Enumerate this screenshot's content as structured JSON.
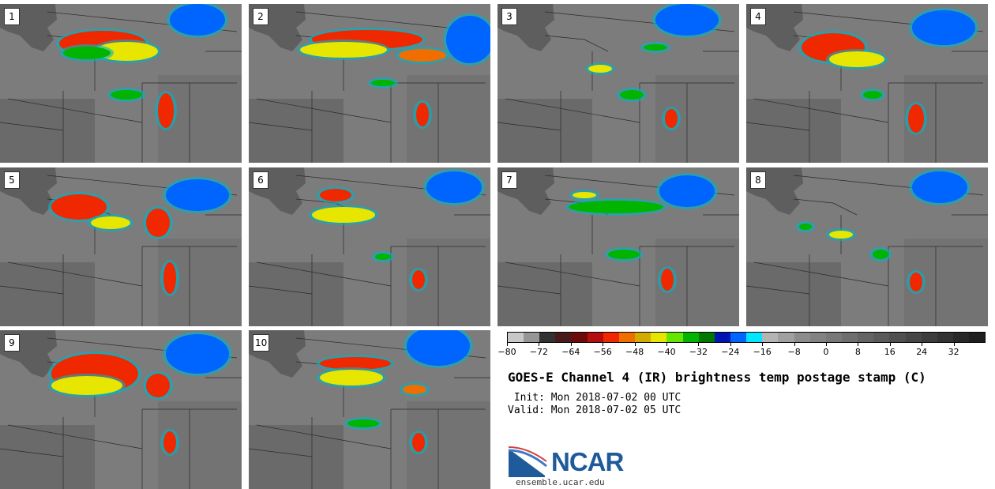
{
  "panels": [
    {
      "label": "1"
    },
    {
      "label": "2"
    },
    {
      "label": "3"
    },
    {
      "label": "4"
    },
    {
      "label": "5"
    },
    {
      "label": "6"
    },
    {
      "label": "7"
    },
    {
      "label": "8"
    },
    {
      "label": "9"
    },
    {
      "label": "10"
    }
  ],
  "colorbar": {
    "colors": [
      "#c8c8c8",
      "#969696",
      "#323232",
      "#4a1a1a",
      "#6e0a0a",
      "#b40f0f",
      "#f02800",
      "#f06e00",
      "#d2aa00",
      "#e6e600",
      "#64e600",
      "#00b400",
      "#007800",
      "#0014b4",
      "#0064ff",
      "#00e6ff",
      "#b4b4b4",
      "#a0a0a0",
      "#8c8c8c",
      "#828282",
      "#787878",
      "#6e6e6e",
      "#646464",
      "#5a5a5a",
      "#505050",
      "#464646",
      "#3c3c3c",
      "#323232",
      "#282828",
      "#1e1e1e"
    ],
    "tick_labels": [
      "−80",
      "−72",
      "−64",
      "−56",
      "−48",
      "−40",
      "−32",
      "−24",
      "−16",
      "−8",
      "0",
      "8",
      "16",
      "24",
      "32"
    ]
  },
  "title": "GOES-E Channel 4 (IR) brightness temp postage stamp (C)",
  "init": "Init: Mon 2018-07-02 00 UTC",
  "valid": "Valid: Mon 2018-07-02 05 UTC",
  "logo_text": "NCAR",
  "url": "ensemble.ucar.edu"
}
